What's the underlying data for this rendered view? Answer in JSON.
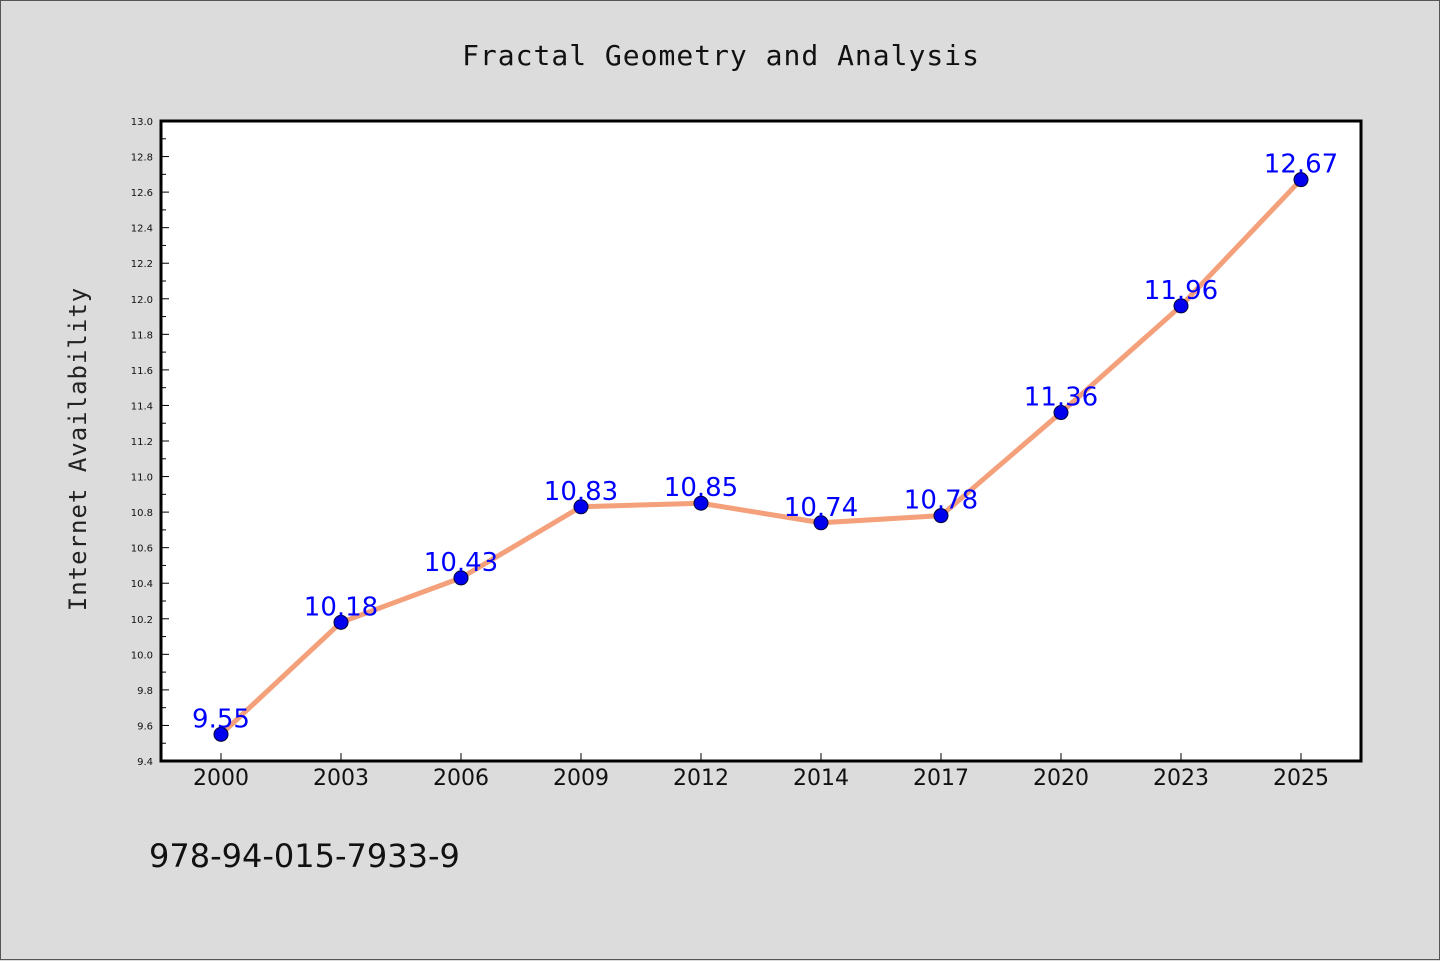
{
  "chart_data": {
    "type": "line",
    "title": "Fractal Geometry and Analysis",
    "xlabel": "",
    "ylabel": "Internet Availability",
    "categories": [
      "2000",
      "2003",
      "2006",
      "2009",
      "2012",
      "2014",
      "2017",
      "2020",
      "2023",
      "2025"
    ],
    "series": [
      {
        "values": [
          9.55,
          10.18,
          10.43,
          10.83,
          10.85,
          10.74,
          10.78,
          11.36,
          11.96,
          12.67
        ]
      }
    ],
    "data_labels": [
      "9.55",
      "10.18",
      "10.43",
      "10.83",
      "10.85",
      "10.74",
      "10.78",
      "11.36",
      "11.96",
      "12.67"
    ],
    "ylim": [
      9.4,
      13.0
    ],
    "yticks": [
      "9.4",
      "9.6",
      "9.8",
      "10.0",
      "10.2",
      "10.4",
      "10.6",
      "10.8",
      "11.0",
      "11.2",
      "11.4",
      "11.6",
      "11.8",
      "12.0",
      "12.2",
      "12.4",
      "12.6",
      "12.8",
      "13.0"
    ],
    "grid": false,
    "legend": "none",
    "colors": {
      "line": "#f4a07a",
      "marker": "#0000ee",
      "data_label": "#0000ff",
      "background": "#dcdcdc",
      "plot_background": "#ffffff"
    }
  },
  "footer_note": "978-94-015-7933-9"
}
